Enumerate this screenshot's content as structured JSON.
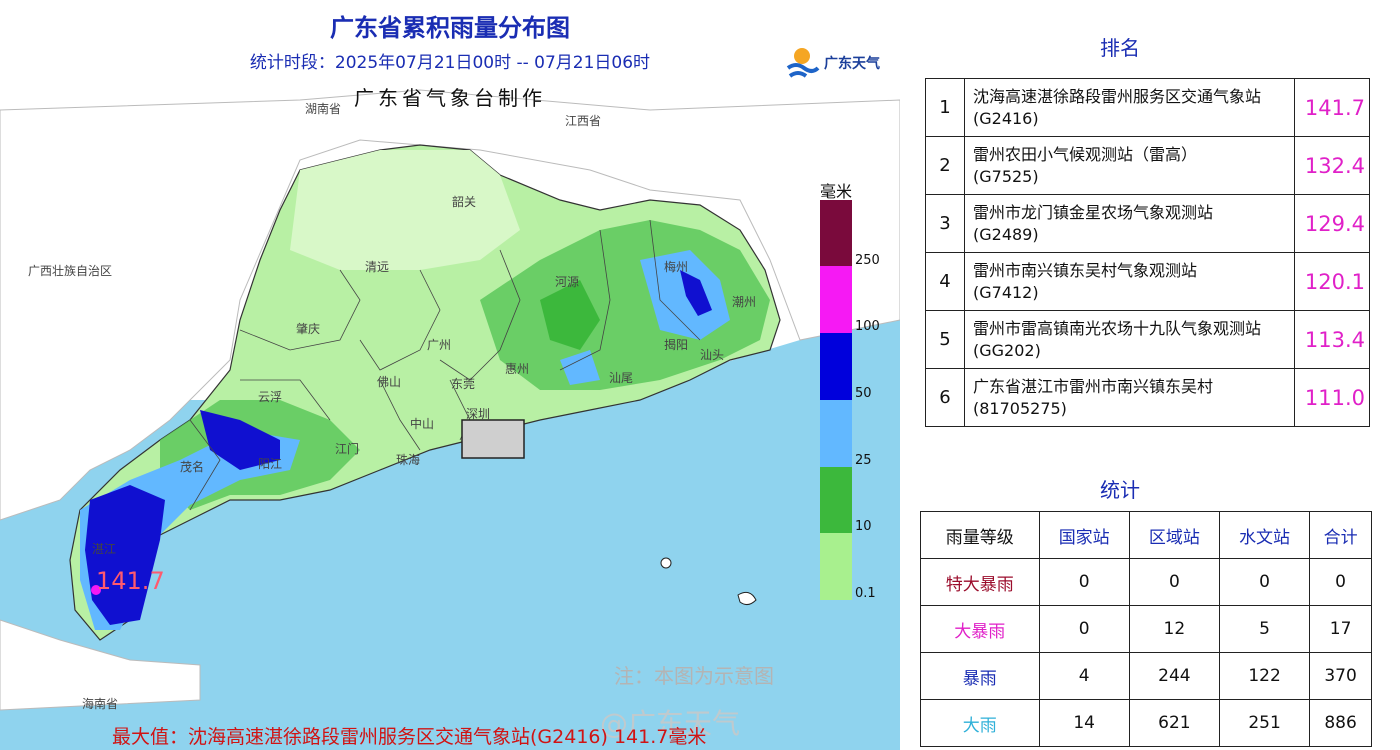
{
  "map": {
    "title": "广东省累积雨量分布图",
    "period": "统计时段：2025年07月21日00时  --  07月21日06时",
    "maker": "广东省气象台制作",
    "logo_text": "广东天气",
    "places": [
      "江西省",
      "广西壮族自治区",
      "韶关",
      "清远",
      "河源",
      "梅州",
      "潮州",
      "肇庆",
      "广州",
      "惠州",
      "揭阳",
      "汕头",
      "云浮",
      "佛山",
      "东莞",
      "汕尾",
      "深圳",
      "中山",
      "江门",
      "珠海",
      "阳江",
      "茂名",
      "湛江",
      "海南省",
      "湖南省"
    ],
    "max_value_label": "141.7",
    "note": "注：本图为示意图",
    "watermark": "@广东天气",
    "bottom_line": "最大值：沈海高速湛徐路段雷州服务区交通气象站(G2416) 141.7毫米",
    "legend": {
      "unit": "毫米",
      "ticks": [
        "250",
        "100",
        "50",
        "25",
        "10",
        "0.1"
      ],
      "colors": [
        "#7a0a3c",
        "#f619f4",
        "#0000dc",
        "#62b8ff",
        "#3cb83c",
        "#a8f08e"
      ]
    }
  },
  "ranking": {
    "title": "排名",
    "rows": [
      {
        "no": "1",
        "name_line1": "沈海高速湛徐路段雷州服务区交通气象站",
        "name_line2": "(G2416)",
        "value": "141.7"
      },
      {
        "no": "2",
        "name_line1": "雷州农田小气候观测站（雷高）",
        "name_line2": "(G7525)",
        "value": "132.4"
      },
      {
        "no": "3",
        "name_line1": "雷州市龙门镇金星农场气象观测站",
        "name_line2": "(G2489)",
        "value": "129.4"
      },
      {
        "no": "4",
        "name_line1": "雷州市南兴镇东吴村气象观测站",
        "name_line2": "(G7412)",
        "value": "120.1"
      },
      {
        "no": "5",
        "name_line1": "雷州市雷高镇南光农场十九队气象观测站",
        "name_line2": "(GG202)",
        "value": "113.4"
      },
      {
        "no": "6",
        "name_line1": "广东省湛江市雷州市南兴镇东吴村",
        "name_line2": "(81705275)",
        "value": "111.0"
      }
    ]
  },
  "stats": {
    "title": "统计",
    "headers": [
      "雨量等级",
      "国家站",
      "区域站",
      "水文站",
      "合计"
    ],
    "rows": [
      {
        "grade": "特大暴雨",
        "color": "#9b0d2c",
        "values": [
          "0",
          "0",
          "0",
          "0"
        ]
      },
      {
        "grade": "大暴雨",
        "color": "#e020c8",
        "values": [
          "0",
          "12",
          "5",
          "17"
        ]
      },
      {
        "grade": "暴雨",
        "color": "#1a2db3",
        "values": [
          "4",
          "244",
          "122",
          "370"
        ]
      },
      {
        "grade": "大雨",
        "color": "#2fb0d8",
        "values": [
          "14",
          "621",
          "251",
          "886"
        ]
      }
    ]
  }
}
